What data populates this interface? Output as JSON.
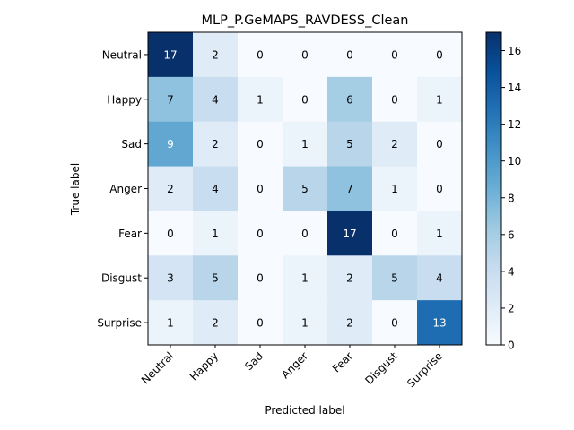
{
  "chart_data": {
    "type": "heatmap",
    "title": "MLP_P.GeMAPS_RAVDESS_Clean",
    "xlabel": "Predicted label",
    "ylabel": "True label",
    "x_categories": [
      "Neutral",
      "Happy",
      "Sad",
      "Anger",
      "Fear",
      "Disgust",
      "Surprise"
    ],
    "y_categories": [
      "Neutral",
      "Happy",
      "Sad",
      "Anger",
      "Fear",
      "Disgust",
      "Surprise"
    ],
    "matrix": [
      [
        17,
        2,
        0,
        0,
        0,
        0,
        0
      ],
      [
        7,
        4,
        1,
        0,
        6,
        0,
        1
      ],
      [
        9,
        2,
        0,
        1,
        5,
        2,
        0
      ],
      [
        2,
        4,
        0,
        5,
        7,
        1,
        0
      ],
      [
        0,
        1,
        0,
        0,
        17,
        0,
        1
      ],
      [
        3,
        5,
        0,
        1,
        2,
        5,
        4
      ],
      [
        1,
        2,
        0,
        1,
        2,
        0,
        13
      ]
    ],
    "colorbar": {
      "colormap": "Blues",
      "range": [
        0,
        17
      ],
      "ticks": [
        0,
        2,
        4,
        6,
        8,
        10,
        12,
        14,
        16
      ]
    },
    "text_color_threshold": 8.5
  }
}
